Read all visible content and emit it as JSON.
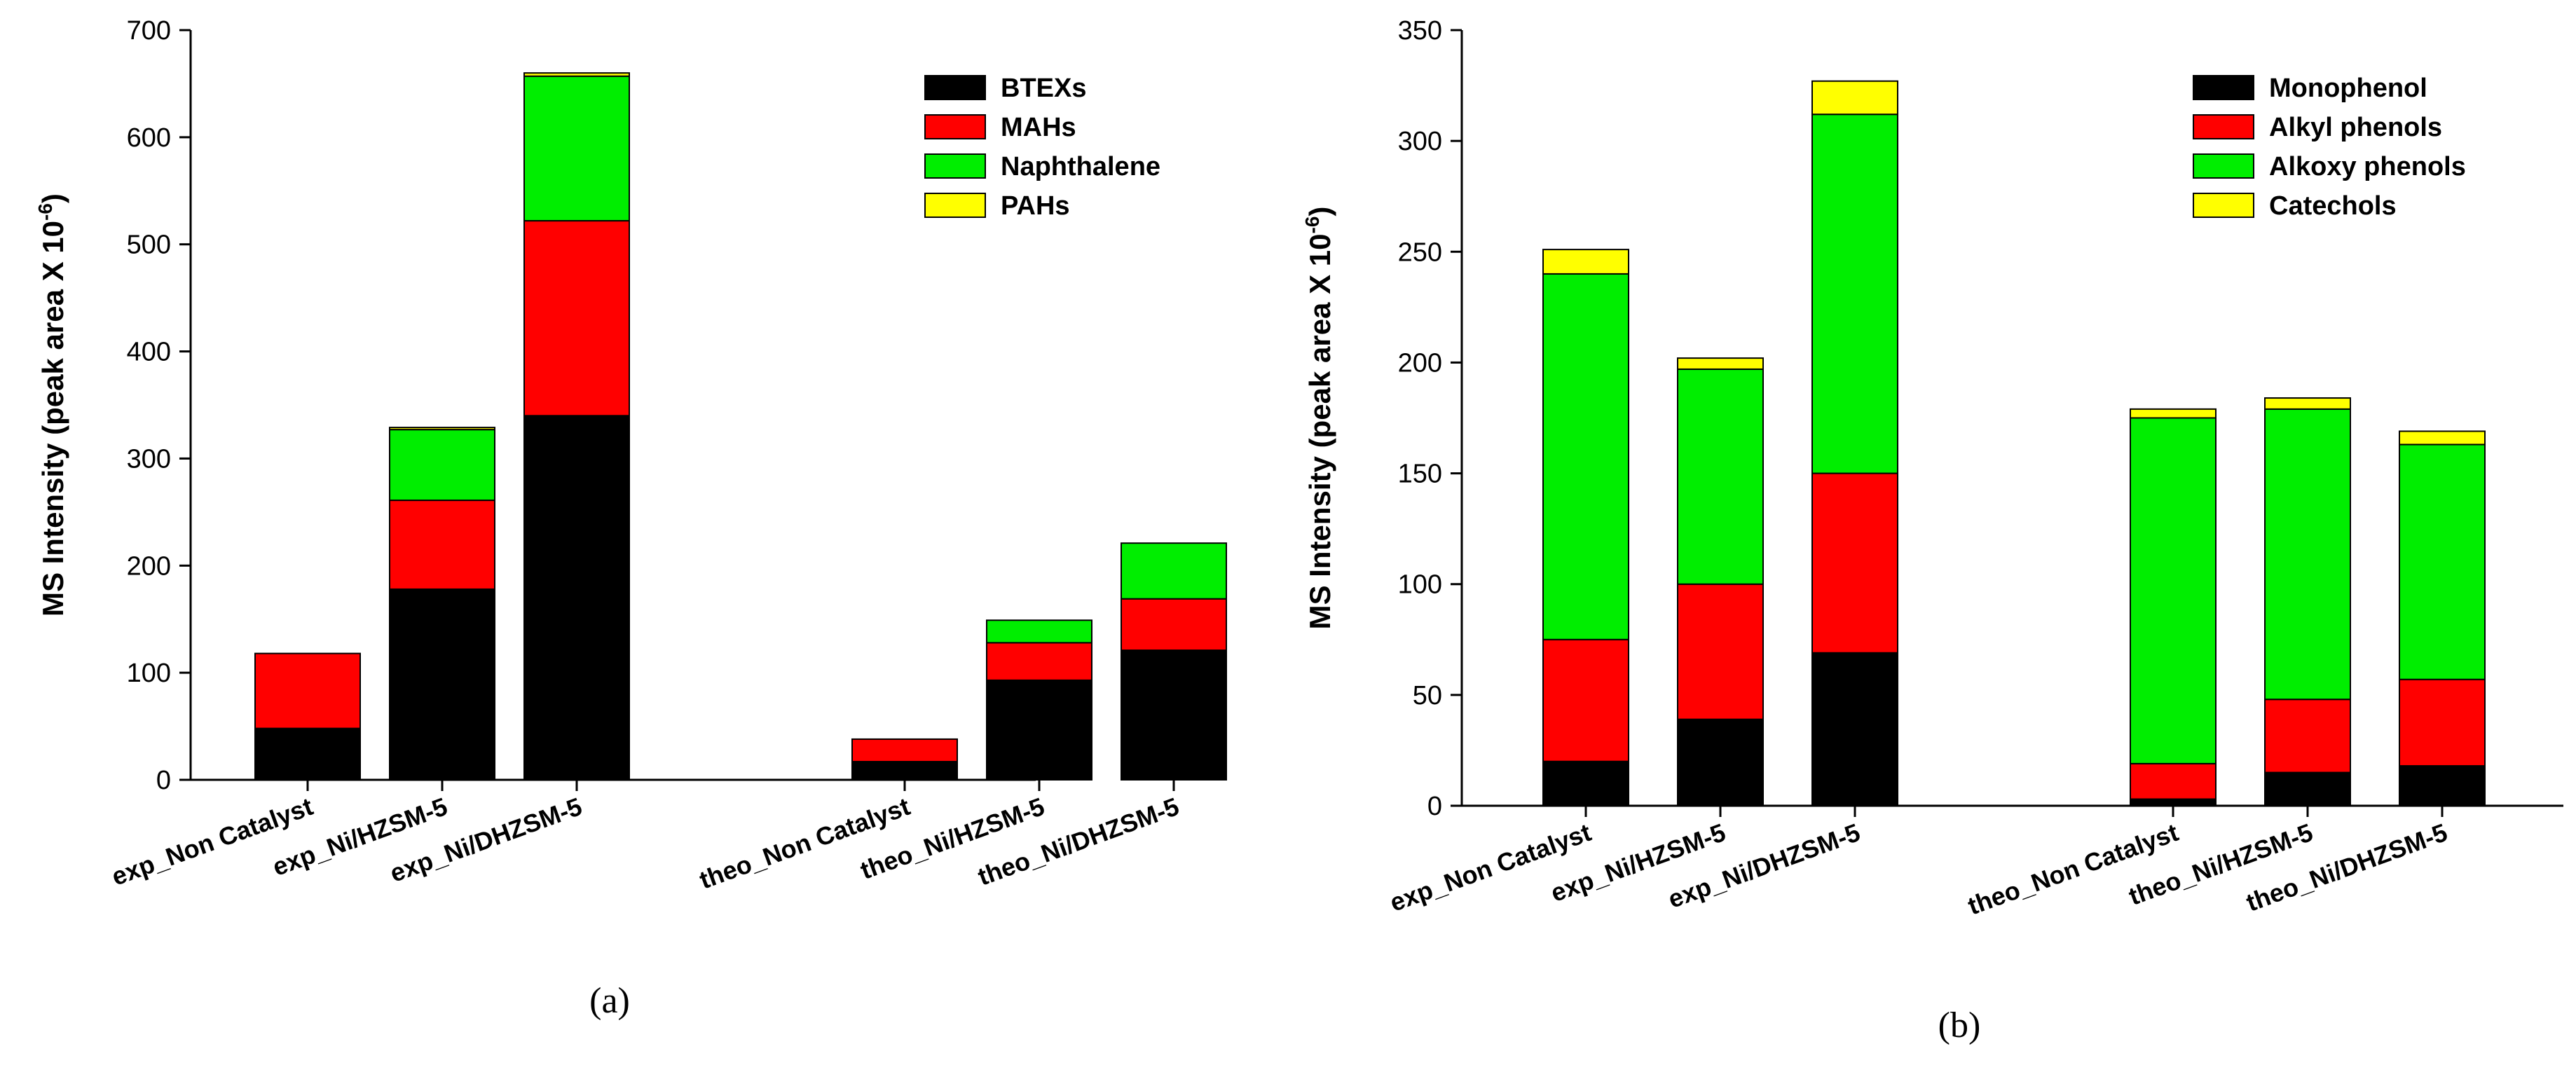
{
  "chart_data": [
    {
      "type": "bar",
      "stacked": true,
      "title": "",
      "panel_label": "(a)",
      "xlabel": "",
      "ylabel": "MS Intensity (peak area X 10",
      "ylabel_exponent": "-6",
      "ylabel_suffix": ")",
      "ylim": [
        0,
        700
      ],
      "yticks": [
        0,
        100,
        200,
        300,
        400,
        500,
        600,
        700
      ],
      "grid": false,
      "legend_position": "top-right",
      "categories": [
        "exp_Non Catalyst",
        "exp_Ni/HZSM-5",
        "exp_Ni/DHZSM-5",
        "theo_Non Catalyst",
        "theo_Ni/HZSM-5",
        "theo_Ni/DHZSM-5"
      ],
      "series": [
        {
          "name": "BTEXs",
          "color": "#000000",
          "values": [
            48,
            178,
            340,
            17,
            93,
            121
          ]
        },
        {
          "name": "MAHs",
          "color": "#ff0000",
          "values": [
            70,
            83,
            182,
            21,
            35,
            48
          ]
        },
        {
          "name": "Naphthalene",
          "color": "#00ee00",
          "values": [
            0,
            66,
            135,
            0,
            21,
            52
          ]
        },
        {
          "name": "PAHs",
          "color": "#ffff00",
          "values": [
            0,
            2,
            3,
            0,
            0,
            0
          ]
        }
      ]
    },
    {
      "type": "bar",
      "stacked": true,
      "title": "",
      "panel_label": "(b)",
      "xlabel": "",
      "ylabel": "MS Intensity (peak area X 10",
      "ylabel_exponent": "-6",
      "ylabel_suffix": ")",
      "ylim": [
        0,
        350
      ],
      "yticks": [
        0,
        50,
        100,
        150,
        200,
        250,
        300,
        350
      ],
      "grid": false,
      "legend_position": "top-right",
      "categories": [
        "exp_Non Catalyst",
        "exp_Ni/HZSM-5",
        "exp_Ni/DHZSM-5",
        "theo_Non Catalyst",
        "theo_Ni/HZSM-5",
        "theo_Ni/DHZSM-5"
      ],
      "series": [
        {
          "name": "Monophenol",
          "color": "#000000",
          "values": [
            20,
            39,
            69,
            3,
            15,
            18
          ]
        },
        {
          "name": "Alkyl phenols",
          "color": "#ff0000",
          "values": [
            55,
            61,
            81,
            16,
            33,
            39
          ]
        },
        {
          "name": "Alkoxy phenols",
          "color": "#00ee00",
          "values": [
            165,
            97,
            162,
            156,
            131,
            106
          ]
        },
        {
          "name": "Catechols",
          "color": "#ffff00",
          "values": [
            11,
            5,
            15,
            4,
            5,
            6
          ]
        }
      ]
    }
  ]
}
